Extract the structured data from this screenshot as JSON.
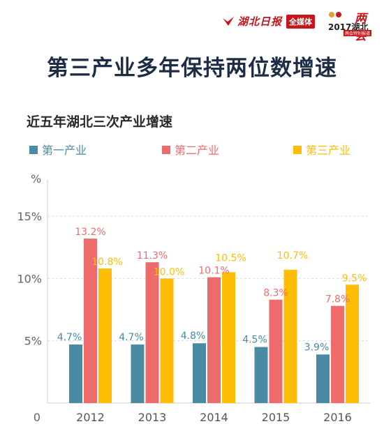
{
  "header": {
    "brand_name": "湖北日报",
    "brand_badge": "全媒体",
    "event_mark": "两会",
    "event_label": "2017湖北",
    "event_sub": "两会特别报道",
    "brand_color": "#c8161d"
  },
  "title": "第三产业多年保持两位数增速",
  "chart_data": {
    "type": "bar",
    "title": "近五年湖北三次产业增速",
    "ylabel": "%",
    "xlabel": "",
    "categories": [
      "2012",
      "2013",
      "2014",
      "2015",
      "2016"
    ],
    "series": [
      {
        "name": "第一产业",
        "color": "#4a8aa5",
        "values": [
          4.7,
          4.7,
          4.8,
          4.5,
          3.9
        ],
        "labels": [
          "4.7%",
          "4.7%",
          "4.8%",
          "4.5%",
          "3.9%"
        ]
      },
      {
        "name": "第二产业",
        "color": "#ee6b6b",
        "values": [
          13.2,
          11.3,
          10.1,
          8.3,
          7.8
        ],
        "labels": [
          "13.2%",
          "11.3%",
          "10.1%",
          "8.3%",
          "7.8%"
        ]
      },
      {
        "name": "第三产业",
        "color": "#ffbd05",
        "values": [
          10.8,
          10.0,
          10.5,
          10.7,
          9.5
        ],
        "labels": [
          "10.8%",
          "10.0%",
          "10.5%",
          "10.7%",
          "9.5%"
        ]
      }
    ],
    "ylim": [
      0,
      15
    ],
    "yticks": [
      0,
      5,
      10,
      15
    ],
    "ytick_labels": [
      "0",
      "5%",
      "10%",
      "15%"
    ],
    "grid": true,
    "legend_position": "top"
  }
}
